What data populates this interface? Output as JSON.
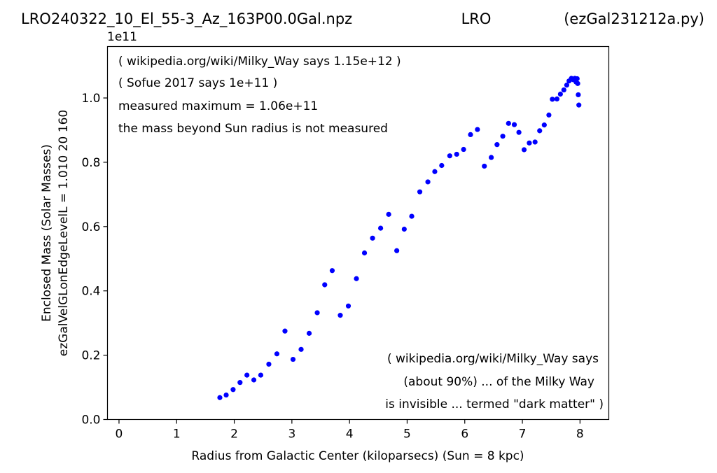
{
  "header": {
    "file_title": "LRO240322_10_El_55-3_Az_163P00.0Gal.npz",
    "center_title": "LRO",
    "right_title": "(ezGal231212a.py)"
  },
  "chart_data": {
    "type": "scatter",
    "xlabel": "Radius from Galactic Center (kiloparsecs)  (Sun = 8 kpc)",
    "ylabel_line1": "Enclosed Mass (Solar Masses)",
    "ylabel_line2": "ezGalVelGLonEdgeLevelL = 1.010  20  160",
    "y_offset_label": "1e11",
    "xlim": [
      -0.2,
      8.5
    ],
    "ylim": [
      0.0,
      1.16
    ],
    "y_scale_factor": 100000000000.0,
    "x_ticks": [
      0,
      1,
      2,
      3,
      4,
      5,
      6,
      7,
      8
    ],
    "x_tick_labels": [
      "0",
      "1",
      "2",
      "3",
      "4",
      "5",
      "6",
      "7",
      "8"
    ],
    "y_ticks": [
      0.0,
      0.2,
      0.4,
      0.6,
      0.8,
      1.0
    ],
    "y_tick_labels": [
      "0.0",
      "0.2",
      "0.4",
      "0.6",
      "0.8",
      "1.0"
    ],
    "grid": false,
    "marker_color": "#0000ff",
    "annotations_top": [
      "( wikipedia.org/wiki/Milky_Way says 1.15e+12 )",
      "( Sofue 2017 says 1e+11 )",
      "measured maximum = 1.06e+11",
      "the mass beyond Sun radius is not measured"
    ],
    "annotations_bottom": [
      "( wikipedia.org/wiki/Milky_Way says",
      "(about 90%) ... of the Milky Way",
      "is invisible ... termed \"dark matter\" )"
    ],
    "series": [
      {
        "points": [
          [
            1.75,
            0.068
          ],
          [
            1.86,
            0.076
          ],
          [
            1.98,
            0.093
          ],
          [
            2.1,
            0.115
          ],
          [
            2.22,
            0.138
          ],
          [
            2.34,
            0.123
          ],
          [
            2.46,
            0.138
          ],
          [
            2.6,
            0.172
          ],
          [
            2.74,
            0.204
          ],
          [
            2.88,
            0.275
          ],
          [
            3.02,
            0.187
          ],
          [
            3.16,
            0.218
          ],
          [
            3.3,
            0.268
          ],
          [
            3.44,
            0.332
          ],
          [
            3.57,
            0.419
          ],
          [
            3.7,
            0.463
          ],
          [
            3.84,
            0.324
          ],
          [
            3.98,
            0.353
          ],
          [
            4.12,
            0.438
          ],
          [
            4.26,
            0.518
          ],
          [
            4.4,
            0.564
          ],
          [
            4.54,
            0.595
          ],
          [
            4.68,
            0.638
          ],
          [
            4.82,
            0.525
          ],
          [
            4.95,
            0.592
          ],
          [
            5.08,
            0.632
          ],
          [
            5.22,
            0.708
          ],
          [
            5.36,
            0.739
          ],
          [
            5.48,
            0.771
          ],
          [
            5.6,
            0.79
          ],
          [
            5.74,
            0.82
          ],
          [
            5.86,
            0.825
          ],
          [
            5.98,
            0.84
          ],
          [
            6.1,
            0.886
          ],
          [
            6.22,
            0.902
          ],
          [
            6.34,
            0.788
          ],
          [
            6.46,
            0.815
          ],
          [
            6.56,
            0.855
          ],
          [
            6.66,
            0.881
          ],
          [
            6.76,
            0.921
          ],
          [
            6.86,
            0.917
          ],
          [
            6.94,
            0.893
          ],
          [
            7.03,
            0.839
          ],
          [
            7.12,
            0.86
          ],
          [
            7.22,
            0.863
          ],
          [
            7.3,
            0.898
          ],
          [
            7.38,
            0.916
          ],
          [
            7.46,
            0.947
          ],
          [
            7.52,
            0.996
          ],
          [
            7.6,
            0.997
          ],
          [
            7.66,
            1.012
          ],
          [
            7.72,
            1.025
          ],
          [
            7.77,
            1.04
          ],
          [
            7.81,
            1.053
          ],
          [
            7.85,
            1.061
          ],
          [
            7.88,
            1.057
          ],
          [
            7.91,
            1.061
          ],
          [
            7.93,
            1.05
          ],
          [
            7.95,
            1.06
          ],
          [
            7.96,
            1.045
          ],
          [
            7.97,
            1.01
          ],
          [
            7.98,
            0.978
          ]
        ]
      }
    ]
  }
}
